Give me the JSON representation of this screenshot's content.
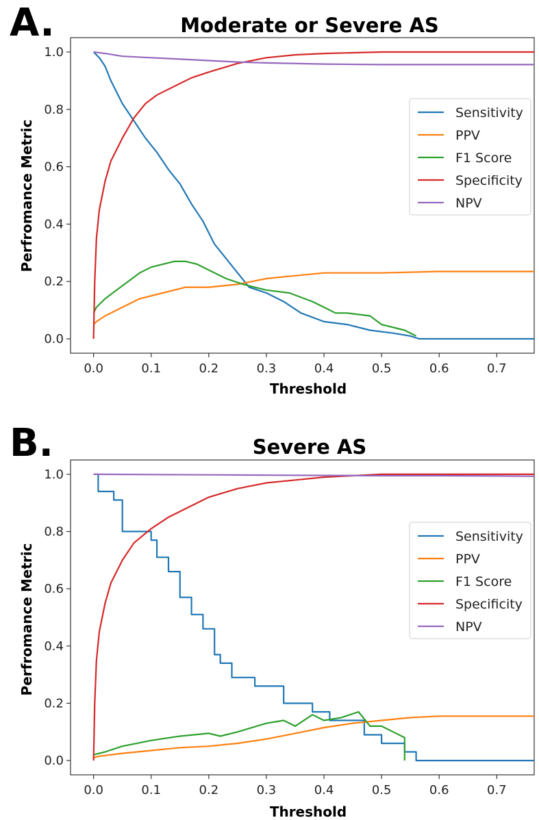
{
  "panels": [
    {
      "letter": "A."
    },
    {
      "letter": "B."
    }
  ],
  "chart_data": [
    {
      "type": "line",
      "title": "Moderate or Severe AS",
      "xlabel": "Threshold",
      "ylabel": "Perfromance Metric",
      "xlim": [
        -0.04,
        0.765
      ],
      "ylim": [
        -0.05,
        1.05
      ],
      "xticks": [
        0.0,
        0.1,
        0.2,
        0.3,
        0.4,
        0.5,
        0.6,
        0.7
      ],
      "yticks": [
        0.0,
        0.2,
        0.4,
        0.6,
        0.8,
        1.0
      ],
      "xtick_labels": [
        "0.0",
        "0.1",
        "0.2",
        "0.3",
        "0.4",
        "0.5",
        "0.6",
        "0.7"
      ],
      "ytick_labels": [
        "0.0",
        "0.2",
        "0.4",
        "0.6",
        "0.8",
        "1.0"
      ],
      "grid": false,
      "legend": "center-right",
      "series": [
        {
          "name": "Sensitivity",
          "color": "#1f77b4",
          "x": [
            0.0,
            0.01,
            0.02,
            0.03,
            0.05,
            0.07,
            0.09,
            0.11,
            0.13,
            0.15,
            0.17,
            0.19,
            0.21,
            0.23,
            0.25,
            0.27,
            0.3,
            0.33,
            0.36,
            0.4,
            0.44,
            0.48,
            0.52,
            0.55,
            0.565,
            0.6,
            0.7,
            0.765
          ],
          "y": [
            1.0,
            0.98,
            0.95,
            0.9,
            0.82,
            0.76,
            0.7,
            0.65,
            0.59,
            0.54,
            0.47,
            0.41,
            0.33,
            0.28,
            0.23,
            0.18,
            0.16,
            0.13,
            0.09,
            0.06,
            0.05,
            0.03,
            0.02,
            0.01,
            0.0,
            0.0,
            0.0,
            0.0
          ]
        },
        {
          "name": "PPV",
          "color": "#ff7f0e",
          "x": [
            0.0,
            0.005,
            0.02,
            0.05,
            0.08,
            0.12,
            0.16,
            0.2,
            0.25,
            0.3,
            0.35,
            0.4,
            0.5,
            0.6,
            0.7,
            0.765
          ],
          "y": [
            0.05,
            0.06,
            0.08,
            0.11,
            0.14,
            0.16,
            0.18,
            0.18,
            0.19,
            0.21,
            0.22,
            0.23,
            0.23,
            0.235,
            0.235,
            0.235
          ]
        },
        {
          "name": "F1 Score",
          "color": "#2ca02c",
          "x": [
            0.0,
            0.005,
            0.02,
            0.04,
            0.06,
            0.08,
            0.1,
            0.12,
            0.14,
            0.16,
            0.18,
            0.2,
            0.23,
            0.26,
            0.3,
            0.34,
            0.38,
            0.4,
            0.42,
            0.44,
            0.48,
            0.5,
            0.54,
            0.56
          ],
          "y": [
            0.09,
            0.11,
            0.14,
            0.17,
            0.2,
            0.23,
            0.25,
            0.26,
            0.27,
            0.27,
            0.26,
            0.24,
            0.21,
            0.19,
            0.17,
            0.16,
            0.13,
            0.11,
            0.09,
            0.09,
            0.08,
            0.05,
            0.03,
            0.01
          ]
        },
        {
          "name": "Specificity",
          "color": "#d62728",
          "x": [
            0.0,
            0.002,
            0.005,
            0.01,
            0.02,
            0.03,
            0.05,
            0.07,
            0.09,
            0.11,
            0.14,
            0.17,
            0.2,
            0.25,
            0.3,
            0.35,
            0.4,
            0.5,
            0.6,
            0.7,
            0.765
          ],
          "y": [
            0.0,
            0.2,
            0.35,
            0.45,
            0.55,
            0.62,
            0.7,
            0.77,
            0.82,
            0.85,
            0.88,
            0.91,
            0.93,
            0.96,
            0.98,
            0.99,
            0.995,
            1.0,
            1.0,
            1.0,
            1.0
          ]
        },
        {
          "name": "NPV",
          "color": "#9467bd",
          "x": [
            0.0,
            0.02,
            0.05,
            0.1,
            0.15,
            0.2,
            0.25,
            0.3,
            0.4,
            0.5,
            0.6,
            0.7,
            0.765
          ],
          "y": [
            1.0,
            0.995,
            0.985,
            0.98,
            0.975,
            0.97,
            0.965,
            0.962,
            0.958,
            0.956,
            0.956,
            0.956,
            0.956
          ]
        }
      ]
    },
    {
      "type": "line",
      "title": "Severe AS",
      "xlabel": "Threshold",
      "ylabel": "Perfromance Metric",
      "xlim": [
        -0.04,
        0.765
      ],
      "ylim": [
        -0.05,
        1.05
      ],
      "xticks": [
        0.0,
        0.1,
        0.2,
        0.3,
        0.4,
        0.5,
        0.6,
        0.7
      ],
      "yticks": [
        0.0,
        0.2,
        0.4,
        0.6,
        0.8,
        1.0
      ],
      "xtick_labels": [
        "0.0",
        "0.1",
        "0.2",
        "0.3",
        "0.4",
        "0.5",
        "0.6",
        "0.7"
      ],
      "ytick_labels": [
        "0.0",
        "0.2",
        "0.4",
        "0.6",
        "0.8",
        "1.0"
      ],
      "grid": false,
      "legend": "center-right",
      "series": [
        {
          "name": "Sensitivity",
          "color": "#1f77b4",
          "x": [
            0.0,
            0.008,
            0.008,
            0.035,
            0.035,
            0.05,
            0.05,
            0.1,
            0.1,
            0.11,
            0.11,
            0.13,
            0.13,
            0.15,
            0.15,
            0.17,
            0.17,
            0.19,
            0.19,
            0.21,
            0.21,
            0.22,
            0.22,
            0.24,
            0.24,
            0.28,
            0.28,
            0.33,
            0.33,
            0.38,
            0.38,
            0.41,
            0.41,
            0.47,
            0.47,
            0.5,
            0.5,
            0.54,
            0.54,
            0.56,
            0.56,
            0.765
          ],
          "y": [
            1.0,
            1.0,
            0.94,
            0.94,
            0.91,
            0.91,
            0.8,
            0.8,
            0.77,
            0.77,
            0.71,
            0.71,
            0.66,
            0.66,
            0.57,
            0.57,
            0.51,
            0.51,
            0.46,
            0.46,
            0.37,
            0.37,
            0.34,
            0.34,
            0.29,
            0.29,
            0.26,
            0.26,
            0.2,
            0.2,
            0.17,
            0.17,
            0.14,
            0.14,
            0.09,
            0.09,
            0.06,
            0.06,
            0.03,
            0.03,
            0.0,
            0.0
          ]
        },
        {
          "name": "PPV",
          "color": "#ff7f0e",
          "x": [
            0.0,
            0.01,
            0.05,
            0.1,
            0.15,
            0.2,
            0.25,
            0.3,
            0.35,
            0.4,
            0.45,
            0.5,
            0.55,
            0.6,
            0.7,
            0.765
          ],
          "y": [
            0.01,
            0.015,
            0.025,
            0.035,
            0.045,
            0.05,
            0.06,
            0.075,
            0.095,
            0.115,
            0.13,
            0.14,
            0.15,
            0.155,
            0.155,
            0.155
          ]
        },
        {
          "name": "F1 Score",
          "color": "#2ca02c",
          "x": [
            0.0,
            0.02,
            0.05,
            0.1,
            0.15,
            0.2,
            0.22,
            0.25,
            0.3,
            0.33,
            0.35,
            0.38,
            0.4,
            0.43,
            0.46,
            0.48,
            0.5,
            0.52,
            0.54,
            0.54
          ],
          "y": [
            0.02,
            0.03,
            0.05,
            0.07,
            0.085,
            0.095,
            0.085,
            0.1,
            0.13,
            0.14,
            0.12,
            0.16,
            0.14,
            0.15,
            0.17,
            0.12,
            0.12,
            0.1,
            0.08,
            0.0
          ]
        },
        {
          "name": "Specificity",
          "color": "#d62728",
          "x": [
            0.0,
            0.002,
            0.005,
            0.01,
            0.02,
            0.03,
            0.05,
            0.07,
            0.1,
            0.13,
            0.17,
            0.2,
            0.25,
            0.3,
            0.35,
            0.4,
            0.5,
            0.6,
            0.7,
            0.765
          ],
          "y": [
            0.0,
            0.2,
            0.35,
            0.45,
            0.55,
            0.62,
            0.7,
            0.76,
            0.81,
            0.85,
            0.89,
            0.92,
            0.95,
            0.97,
            0.98,
            0.99,
            1.0,
            1.0,
            1.0,
            1.0
          ]
        },
        {
          "name": "NPV",
          "color": "#9467bd",
          "x": [
            0.0,
            0.1,
            0.2,
            0.3,
            0.4,
            0.5,
            0.6,
            0.7,
            0.765
          ],
          "y": [
            1.0,
            0.999,
            0.998,
            0.997,
            0.996,
            0.995,
            0.995,
            0.994,
            0.993
          ]
        }
      ]
    }
  ]
}
